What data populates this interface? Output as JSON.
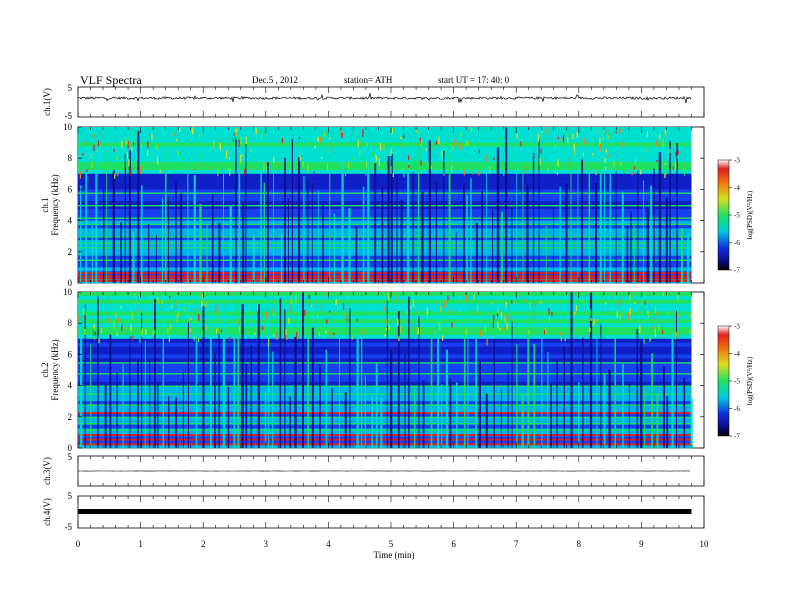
{
  "header": {
    "title": "VLF  Spectra",
    "date": "Dec.5  , 2012",
    "station": "station= ATH",
    "start": "start  UT  =    17: 40: 0"
  },
  "chart_data": [
    {
      "type": "line",
      "id": "ch1_waveform",
      "ylabel": "ch.1(V)",
      "ylim": [
        -5,
        5
      ],
      "yticks": [
        "5",
        "-5"
      ],
      "baseline": 1.3,
      "noise_amplitude": 0.4
    },
    {
      "type": "heatmap",
      "id": "ch1_spectrogram",
      "ylabel": "Frequency (kHz)",
      "ylabel_channel": "ch.1",
      "ylim": [
        0,
        10
      ],
      "yticks": [
        "0",
        "2",
        "4",
        "6",
        "8",
        "10"
      ],
      "colorbar": {
        "label": "log(PSD)(V²/Hz)",
        "range": [
          -7,
          -3
        ],
        "ticks": [
          "-3",
          "-4",
          "-5",
          "-6",
          "-7"
        ]
      },
      "strong_bands_khz": [
        0.2,
        0.35,
        0.5,
        0.7
      ],
      "moderate_bands_khz": [
        1.5,
        2.3,
        2.6,
        3.0,
        3.8,
        4.2,
        5.0,
        5.8
      ]
    },
    {
      "type": "heatmap",
      "id": "ch2_spectrogram",
      "ylabel": "Frequency (kHz)",
      "ylabel_channel": "ch.2",
      "ylim": [
        0,
        10
      ],
      "yticks": [
        "0",
        "2",
        "4",
        "6",
        "8",
        "10"
      ],
      "colorbar": {
        "label": "log(PSD)(V²/Hz)",
        "range": [
          -7,
          -3
        ],
        "ticks": [
          "-3",
          "-4",
          "-5",
          "-6",
          "-7"
        ]
      },
      "strong_bands_khz": [
        0.3,
        0.6,
        0.9,
        2.3
      ],
      "moderate_bands_khz": [
        1.2,
        1.6,
        2.0,
        2.8,
        3.5,
        4.0,
        4.8,
        5.5
      ]
    },
    {
      "type": "line",
      "id": "ch3_waveform",
      "ylabel": "ch.3(V)",
      "ylim": [
        -5,
        5
      ],
      "yticks": [
        "5",
        "-5"
      ],
      "baseline": 0.0,
      "noise_amplitude": 0.05
    },
    {
      "type": "line",
      "id": "ch4_waveform",
      "ylabel": "ch.4(V)",
      "ylim": [
        -5,
        5
      ],
      "yticks": [
        "5",
        "-5"
      ],
      "baseline": 0.0,
      "noise_amplitude": 0.3
    }
  ],
  "xaxis": {
    "label": "Time  (min)",
    "xlim": [
      0,
      10
    ],
    "ticks": [
      "0",
      "1",
      "2",
      "3",
      "4",
      "5",
      "6",
      "7",
      "8",
      "9",
      "10"
    ],
    "data_end_min": 9.8
  }
}
